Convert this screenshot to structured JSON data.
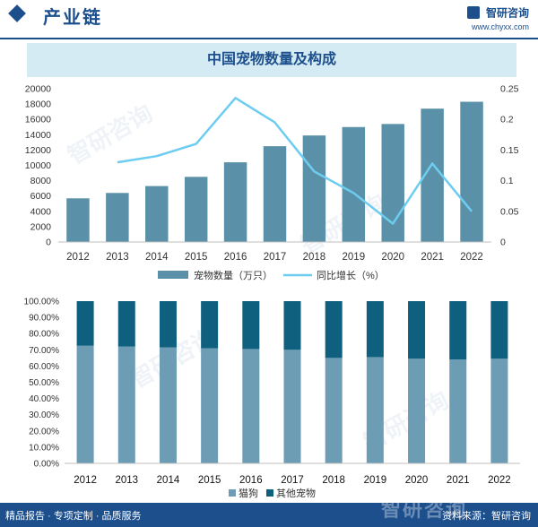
{
  "header": {
    "title": "产业链",
    "brand_name": "智研咨询",
    "brand_url": "www.chyxx.com"
  },
  "watermark_text": "智研咨询",
  "chart_title": "中国宠物数量及构成",
  "colors": {
    "header_blue": "#1c4f8c",
    "title_band": "#d5ebf4",
    "bar_top": "#5b91a8",
    "line": "#6ccdf0",
    "cat_bar": "#6c9db5",
    "other_bar": "#0f5f7e",
    "axis_text": "#333333",
    "footer_blue": "#1c4f8c"
  },
  "chart_data": [
    {
      "type": "bar",
      "categories": [
        "2012",
        "2013",
        "2014",
        "2015",
        "2016",
        "2017",
        "2018",
        "2019",
        "2020",
        "2021",
        "2022"
      ],
      "series": [
        {
          "name": "宠物数量（万只）",
          "type": "bar",
          "axis": "left",
          "values": [
            5700,
            6400,
            7300,
            8500,
            10400,
            12500,
            13900,
            15000,
            15400,
            17400,
            18300
          ]
        },
        {
          "name": "同比增长（%）",
          "type": "line",
          "axis": "right",
          "values": [
            null,
            0.13,
            0.14,
            0.16,
            0.235,
            0.195,
            0.115,
            0.08,
            0.03,
            0.128,
            0.05
          ]
        }
      ],
      "yticks_left": [
        "0",
        "2000",
        "4000",
        "6000",
        "8000",
        "10000",
        "12000",
        "14000",
        "16000",
        "18000",
        "20000"
      ],
      "yticks_right": [
        "0",
        "0.05",
        "0.1",
        "0.15",
        "0.2",
        "0.25"
      ],
      "ylim_left": [
        0,
        20000
      ],
      "ylim_right": [
        0,
        0.25
      ],
      "legend": "bottom",
      "grid": false
    },
    {
      "type": "bar",
      "stacked": true,
      "categories": [
        "2012",
        "2013",
        "2014",
        "2015",
        "2016",
        "2017",
        "2018",
        "2019",
        "2020",
        "2021",
        "2022"
      ],
      "series": [
        {
          "name": "猫狗",
          "values": [
            72.5,
            72.0,
            71.5,
            71.0,
            70.5,
            70.0,
            65.0,
            65.5,
            64.5,
            64.0,
            64.5
          ]
        },
        {
          "name": "其他宠物",
          "values": [
            27.5,
            28.0,
            28.5,
            29.0,
            29.5,
            30.0,
            35.0,
            34.5,
            35.5,
            36.0,
            35.5
          ]
        }
      ],
      "yticks": [
        "0.00%",
        "10.00%",
        "20.00%",
        "30.00%",
        "40.00%",
        "50.00%",
        "60.00%",
        "70.00%",
        "80.00%",
        "90.00%",
        "100.00%"
      ],
      "ylim": [
        0,
        100
      ],
      "legend": "bottom",
      "grid": false
    }
  ],
  "footer": {
    "left": "精品报告 · 专项定制 · 品质服务",
    "source": "资料来源：智研咨询",
    "brand": "智研咨询"
  }
}
